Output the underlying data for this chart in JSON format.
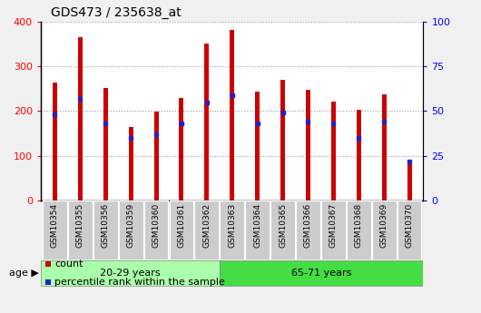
{
  "title": "GDS473 / 235638_at",
  "samples": [
    "GSM10354",
    "GSM10355",
    "GSM10356",
    "GSM10359",
    "GSM10360",
    "GSM10361",
    "GSM10362",
    "GSM10363",
    "GSM10364",
    "GSM10365",
    "GSM10366",
    "GSM10367",
    "GSM10368",
    "GSM10369",
    "GSM10370"
  ],
  "counts": [
    265,
    365,
    252,
    165,
    198,
    230,
    352,
    382,
    244,
    270,
    248,
    222,
    204,
    238,
    82
  ],
  "percentiles": [
    48,
    57,
    43,
    35,
    37,
    43,
    55,
    59,
    43,
    49,
    44,
    43,
    35,
    44,
    22
  ],
  "group1_label": "20-29 years",
  "group2_label": "65-71 years",
  "group1_count": 7,
  "group2_count": 8,
  "ylim_left": [
    0,
    400
  ],
  "ylim_right": [
    0,
    100
  ],
  "yticks_left": [
    0,
    100,
    200,
    300,
    400
  ],
  "yticks_right": [
    0,
    25,
    50,
    75,
    100
  ],
  "bar_color": "#cc0000",
  "percentile_color": "#2222cc",
  "bar_width": 0.18,
  "group1_bg": "#aaffaa",
  "group2_bg": "#44dd44",
  "tick_label_bg": "#cccccc",
  "legend_count_label": "count",
  "legend_pct_label": "percentile rank within the sample",
  "age_label": "age",
  "plot_bg": "#ffffff",
  "grid_color": "#999999"
}
